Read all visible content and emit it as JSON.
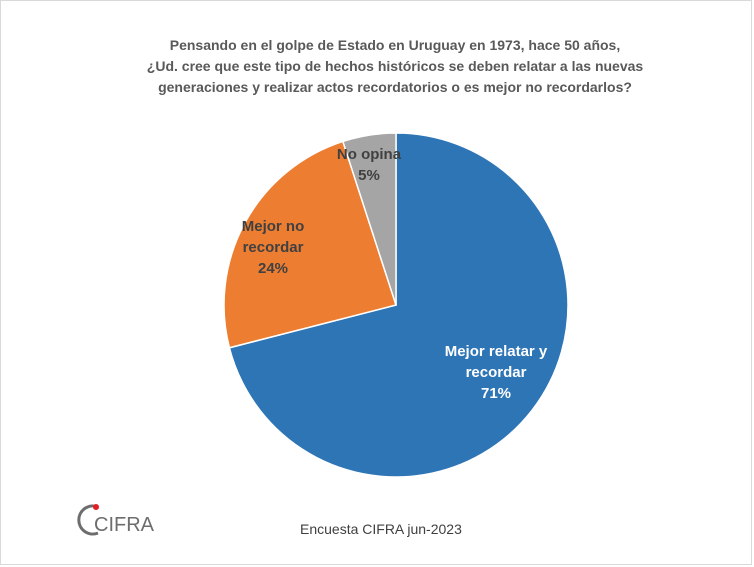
{
  "chart_data": {
    "type": "pie",
    "title_lines": [
      "Pensando en el golpe de Estado en Uruguay en 1973, hace 50 años,",
      "¿Ud. cree que este tipo de hechos históricos se deben relatar a las nuevas",
      "generaciones y realizar actos recordatorios o es mejor no recordarlos?"
    ],
    "slices": [
      {
        "label_lines": [
          "Mejor relatar y",
          "recordar",
          "71%"
        ],
        "value": 71,
        "color": "#2e75b6",
        "label_color": "#ffffff"
      },
      {
        "label_lines": [
          "Mejor no",
          "recordar",
          "24%"
        ],
        "value": 24,
        "color": "#ed7d31",
        "label_color": "#404040"
      },
      {
        "label_lines": [
          "No opina",
          "5%"
        ],
        "value": 5,
        "color": "#a5a5a5",
        "label_color": "#404040"
      }
    ]
  },
  "logo": {
    "text": "CIFRA",
    "accent": "#e31e24"
  },
  "footer": {
    "source": "Encuesta CIFRA  jun-2023"
  }
}
